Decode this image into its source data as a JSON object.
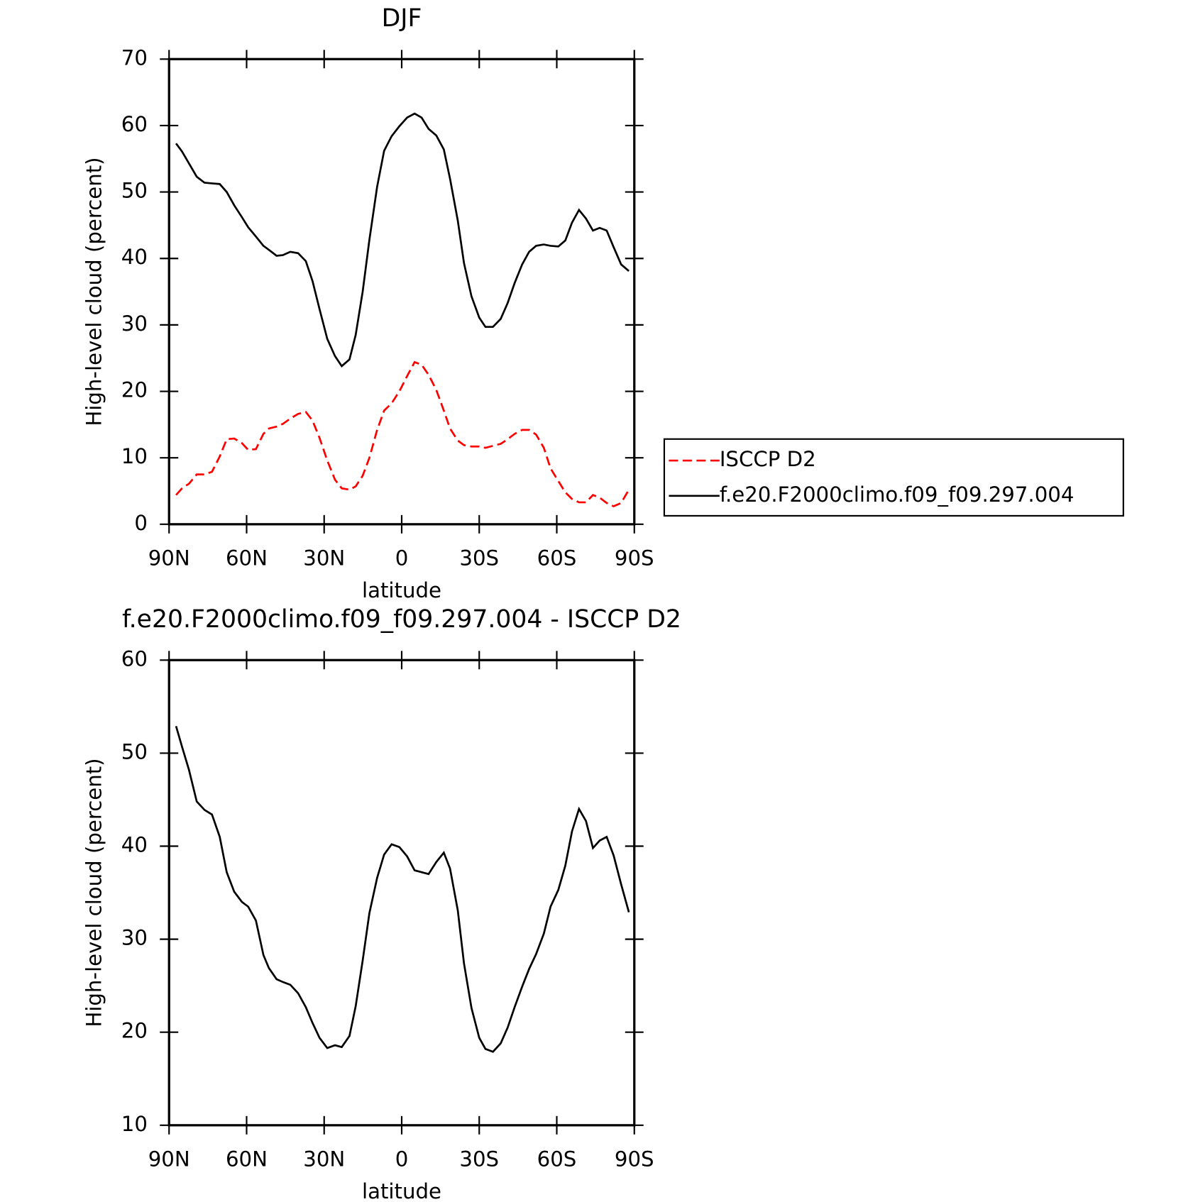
{
  "chart_data": [
    {
      "type": "line",
      "title": "DJF",
      "x_label": "latitude",
      "y_label": "High-level cloud (percent)",
      "x": [
        87.3,
        85.0,
        82.3,
        79.3,
        76.3,
        73.4,
        70.4,
        67.7,
        64.8,
        61.8,
        59.4,
        56.4,
        53.5,
        51.4,
        48.4,
        46.0,
        43.1,
        40.1,
        37.1,
        34.5,
        31.8,
        28.8,
        25.8,
        23.2,
        20.2,
        17.8,
        15.1,
        12.5,
        9.5,
        6.8,
        3.9,
        0.9,
        -2.1,
        -5.0,
        -7.7,
        -10.4,
        -13.4,
        -16.3,
        -18.7,
        -21.7,
        -24.1,
        -27.0,
        -30.0,
        -32.4,
        -35.3,
        -38.3,
        -41.0,
        -43.7,
        -46.6,
        -49.3,
        -52.0,
        -55.0,
        -57.6,
        -60.6,
        -63.3,
        -65.9,
        -68.6,
        -71.3,
        -74.0,
        -76.6,
        -79.3,
        -82.0,
        -84.9,
        -87.9
      ],
      "series": [
        {
          "name": "ISCCP D2",
          "color": "#ff0000",
          "dash": true,
          "values": [
            4.4,
            5.4,
            6.1,
            7.5,
            7.5,
            7.9,
            10.2,
            12.8,
            12.9,
            12.2,
            11.2,
            11.3,
            13.6,
            14.4,
            14.7,
            15.1,
            15.9,
            16.6,
            16.9,
            15.6,
            13.0,
            9.6,
            6.7,
            5.4,
            5.2,
            5.7,
            7.3,
            10.0,
            14.2,
            17.1,
            18.2,
            20.0,
            22.3,
            24.4,
            24.0,
            22.5,
            20.2,
            17.1,
            14.4,
            12.6,
            11.9,
            11.7,
            11.7,
            11.5,
            11.8,
            12.1,
            12.8,
            13.6,
            14.2,
            14.2,
            13.5,
            11.5,
            8.4,
            6.5,
            4.8,
            3.8,
            3.3,
            3.3,
            4.4,
            4.0,
            3.2,
            2.7,
            3.2,
            5.2
          ]
        },
        {
          "name": "f.e20.F2000climo.f09_f09.297.004",
          "color": "#000000",
          "dash": false,
          "values": [
            57.3,
            56.1,
            54.3,
            52.3,
            51.4,
            51.3,
            51.2,
            50.0,
            48.0,
            46.2,
            44.7,
            43.3,
            41.9,
            41.3,
            40.4,
            40.5,
            41.0,
            40.8,
            39.6,
            36.6,
            32.4,
            27.9,
            25.3,
            23.8,
            24.8,
            28.5,
            35.0,
            42.8,
            50.8,
            56.2,
            58.4,
            59.9,
            61.2,
            61.8,
            61.2,
            59.5,
            58.5,
            56.4,
            52.0,
            45.7,
            39.3,
            34.3,
            31.1,
            29.7,
            29.7,
            30.9,
            33.3,
            36.3,
            39.1,
            41.0,
            41.9,
            42.1,
            41.9,
            41.8,
            42.7,
            45.4,
            47.3,
            46.0,
            44.2,
            44.6,
            44.2,
            41.7,
            39.1,
            38.1
          ]
        }
      ],
      "xlim": [
        90,
        -90
      ],
      "xticks": [
        {
          "value": 90,
          "label": "90N"
        },
        {
          "value": 60,
          "label": "60N"
        },
        {
          "value": 30,
          "label": "30N"
        },
        0,
        {
          "value": -30,
          "label": "30S"
        },
        {
          "value": -60,
          "label": "60S"
        },
        {
          "value": -90,
          "label": "90S"
        }
      ],
      "ylim": [
        0,
        70
      ],
      "yticks": [
        0,
        10,
        20,
        30,
        40,
        50,
        60,
        70
      ],
      "legend": "right"
    },
    {
      "type": "line",
      "title": "f.e20.F2000climo.f09_f09.297.004 - ISCCP D2",
      "x_label": "latitude",
      "y_label": "High-level cloud (percent)",
      "x": [
        87.3,
        85.0,
        82.3,
        79.3,
        76.3,
        73.4,
        70.4,
        67.7,
        64.8,
        61.8,
        59.4,
        56.4,
        53.5,
        51.4,
        48.4,
        46.0,
        43.1,
        40.1,
        37.1,
        34.5,
        31.8,
        28.8,
        25.8,
        23.2,
        20.2,
        17.8,
        15.1,
        12.5,
        9.5,
        6.8,
        3.9,
        0.9,
        -2.1,
        -5.0,
        -7.7,
        -10.4,
        -13.4,
        -16.3,
        -18.7,
        -21.7,
        -24.1,
        -27.0,
        -30.0,
        -32.4,
        -35.3,
        -38.3,
        -41.0,
        -43.7,
        -46.6,
        -49.3,
        -52.0,
        -55.0,
        -57.6,
        -60.6,
        -63.3,
        -65.9,
        -68.6,
        -71.3,
        -74.0,
        -76.6,
        -79.3,
        -82.0,
        -84.9,
        -87.9
      ],
      "series": [
        {
          "name": "f.e20.F2000climo.f09_f09.297.004 - ISCCP D2",
          "color": "#000000",
          "dash": false,
          "values": [
            52.9,
            50.7,
            48.2,
            44.8,
            43.9,
            43.4,
            41.0,
            37.2,
            35.1,
            34.0,
            33.5,
            32.0,
            28.3,
            26.9,
            25.7,
            25.4,
            25.1,
            24.2,
            22.7,
            21.0,
            19.4,
            18.3,
            18.6,
            18.4,
            19.6,
            22.8,
            27.7,
            32.8,
            36.6,
            39.1,
            40.2,
            39.9,
            38.9,
            37.4,
            37.2,
            37.0,
            38.3,
            39.3,
            37.6,
            33.1,
            27.4,
            22.6,
            19.4,
            18.2,
            17.9,
            18.8,
            20.5,
            22.7,
            24.9,
            26.8,
            28.4,
            30.6,
            33.5,
            35.3,
            37.9,
            41.6,
            44.0,
            42.7,
            39.8,
            40.6,
            41.0,
            39.0,
            35.9,
            32.9
          ]
        }
      ],
      "xlim": [
        90,
        -90
      ],
      "xticks": [
        {
          "value": 90,
          "label": "90N"
        },
        {
          "value": 60,
          "label": "60N"
        },
        {
          "value": 30,
          "label": "30N"
        },
        0,
        {
          "value": -30,
          "label": "30S"
        },
        {
          "value": -60,
          "label": "60S"
        },
        {
          "value": -90,
          "label": "90S"
        }
      ],
      "ylim": [
        10,
        60
      ],
      "yticks": [
        10,
        20,
        30,
        40,
        50,
        60
      ]
    }
  ]
}
